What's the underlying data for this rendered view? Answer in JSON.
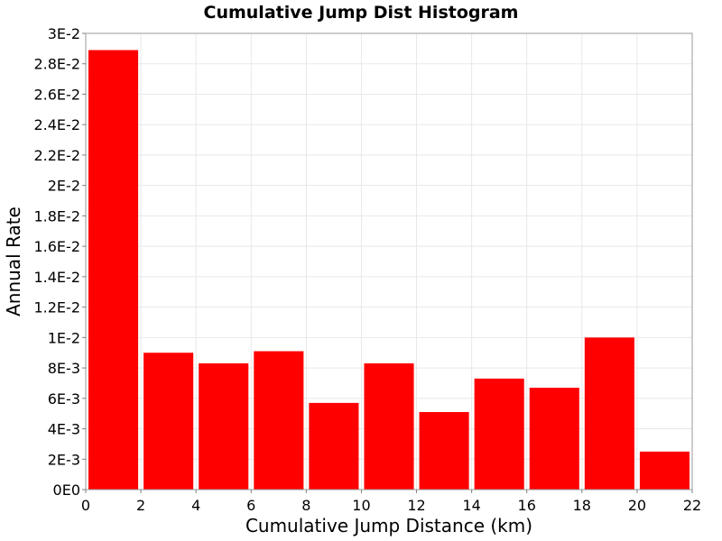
{
  "chart_data": {
    "type": "bar",
    "title": "Cumulative Jump Dist Histogram",
    "xlabel": "Cumulative Jump Distance (km)",
    "ylabel": "Annual Rate",
    "xlim": [
      0,
      22
    ],
    "ylim": [
      0,
      0.03
    ],
    "x_ticks": [
      "0",
      "2",
      "4",
      "6",
      "8",
      "10",
      "12",
      "14",
      "16",
      "18",
      "20",
      "22"
    ],
    "y_ticks": [
      "0E0",
      "2E-3",
      "4E-3",
      "6E-3",
      "8E-3",
      "1E-2",
      "1.2E-2",
      "1.4E-2",
      "1.6E-2",
      "1.8E-2",
      "2E-2",
      "2.2E-2",
      "2.4E-2",
      "2.6E-2",
      "2.8E-2",
      "3E-2"
    ],
    "bin_width": 2,
    "bins": [
      {
        "x0": 0,
        "value": 0.0289
      },
      {
        "x0": 2,
        "value": 0.009
      },
      {
        "x0": 4,
        "value": 0.0083
      },
      {
        "x0": 6,
        "value": 0.0091
      },
      {
        "x0": 8,
        "value": 0.0057
      },
      {
        "x0": 10,
        "value": 0.0083
      },
      {
        "x0": 12,
        "value": 0.0051
      },
      {
        "x0": 14,
        "value": 0.0073
      },
      {
        "x0": 16,
        "value": 0.0067
      },
      {
        "x0": 18,
        "value": 0.01
      },
      {
        "x0": 20,
        "value": 0.0025
      }
    ],
    "bar_color": "#ff0000",
    "grid": true,
    "legend": "none"
  }
}
